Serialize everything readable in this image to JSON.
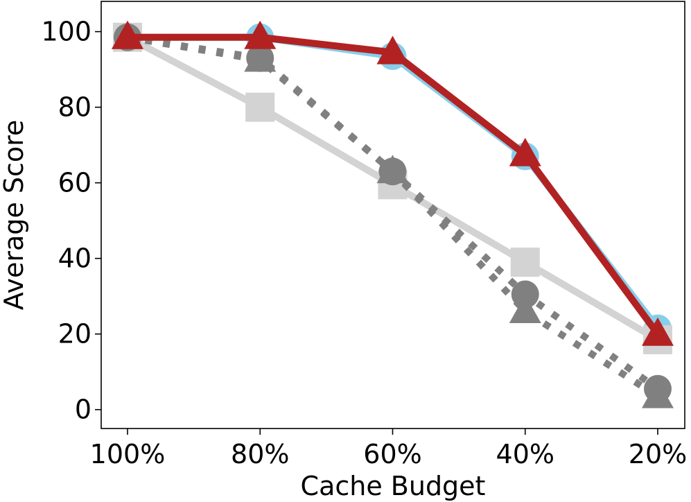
{
  "chart_data": {
    "type": "line",
    "title": "",
    "xlabel": "Cache Budget",
    "ylabel": "Average Score",
    "categories": [
      "100%",
      "80%",
      "60%",
      "40%",
      "20%"
    ],
    "ylim": [
      -5,
      108
    ],
    "yticks": [
      0,
      20,
      40,
      60,
      80,
      100
    ],
    "grid": false,
    "legend": "none",
    "series": [
      {
        "values": [
          98.5,
          98.5,
          93.5,
          67.0,
          21.5
        ],
        "color": "#87ceeb",
        "marker": "circle",
        "line": "solid"
      },
      {
        "values": [
          98.5,
          80.0,
          59.5,
          39.0,
          18.5
        ],
        "color": "#d3d3d3",
        "marker": "square",
        "line": "solid"
      },
      {
        "values": [
          98.5,
          93.0,
          63.0,
          30.5,
          5.5
        ],
        "color": "#808080",
        "marker": "circle",
        "line": "dotted"
      },
      {
        "values": [
          98.5,
          92.5,
          63.0,
          26.0,
          3.5
        ],
        "color": "#808080",
        "marker": "triangle",
        "line": "dotted"
      },
      {
        "values": [
          98.5,
          98.5,
          94.5,
          67.5,
          20.0
        ],
        "color": "#b22222",
        "marker": "triangle",
        "line": "solid"
      }
    ]
  }
}
